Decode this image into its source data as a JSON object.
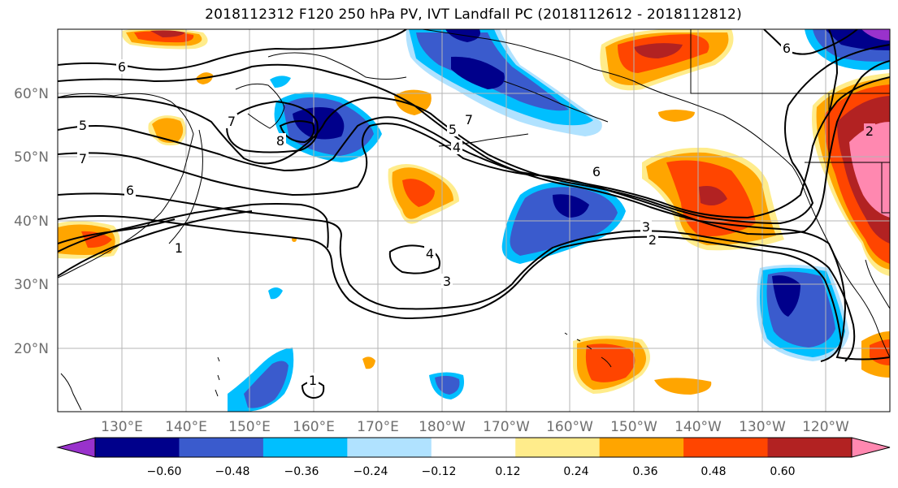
{
  "title": "2018112312 F120 250 hPa PV, IVT Landfall PC (2018112612 - 2018112812)",
  "lat_ticks": [
    "60°N",
    "50°N",
    "40°N",
    "30°N",
    "20°N"
  ],
  "lon_ticks": [
    "130°E",
    "140°E",
    "150°E",
    "160°E",
    "170°E",
    "180°W",
    "170°W",
    "160°W",
    "150°W",
    "140°W",
    "130°W",
    "120°W"
  ],
  "colorbar": {
    "colors": [
      "#9932cc",
      "#00008b",
      "#3a5bcd",
      "#00bfff",
      "#b0e2ff",
      "#ffffff",
      "#ffec8b",
      "#ffa500",
      "#ff4500",
      "#b22222",
      "#ff88b0"
    ],
    "tick_labels": [
      "−0.60",
      "−0.48",
      "−0.36",
      "−0.24",
      "−0.12",
      "0.12",
      "0.24",
      "0.36",
      "0.48",
      "0.60"
    ]
  },
  "contour_labels": [
    "6",
    "5",
    "7",
    "6",
    "7",
    "8",
    "5",
    "7",
    "4",
    "6",
    "3",
    "2",
    "4",
    "3",
    "1",
    "6",
    "1",
    "2"
  ]
}
